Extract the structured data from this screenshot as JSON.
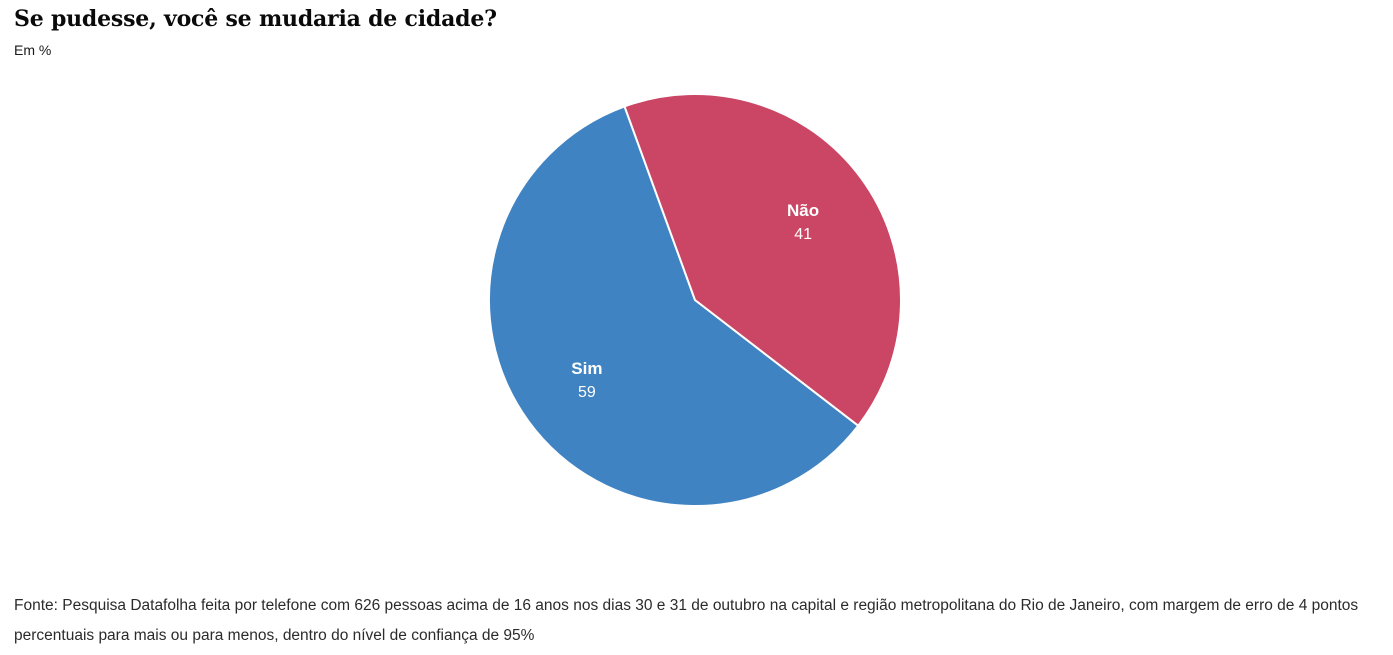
{
  "header": {
    "title": "Se pudesse, você se mudaria de cidade?",
    "subtitle": "Em %"
  },
  "chart_data": {
    "type": "pie",
    "title": "Se pudesse, você se mudaria de cidade?",
    "unit_label": "Em %",
    "slices": [
      {
        "label": "Sim",
        "value": 59,
        "color": "#4083C2"
      },
      {
        "label": "Não",
        "value": 41,
        "color": "#CB4564"
      }
    ],
    "total": 100,
    "start_angle_deg_clockwise_from_top": 127.6,
    "direction": "clockwise",
    "label_position": "inside",
    "label_radius_fraction": 0.65,
    "slice_border_color": "#FFFFFF",
    "slice_border_width": 2,
    "legend": "none"
  },
  "footer": {
    "source_text": "Fonte: Pesquisa Datafolha feita por telefone com 626 pessoas acima de 16 anos nos dias 30 e 31 de outubro na capital e região metropolitana do Rio de Janeiro, com margem de erro de 4 pontos percentuais para mais ou para menos, dentro do nível de confiança de 95%"
  }
}
